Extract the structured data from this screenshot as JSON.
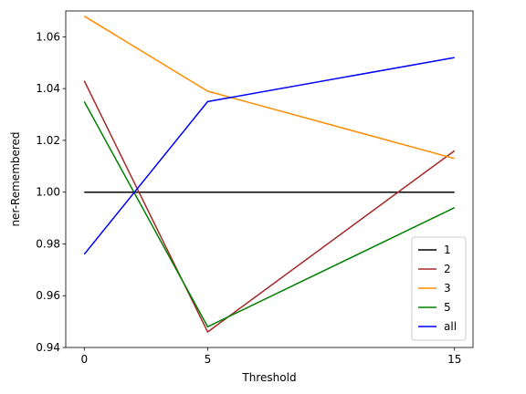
{
  "chart_data": {
    "type": "line",
    "title": "",
    "xlabel": "Threshold",
    "ylabel": "ner-Remembered",
    "x": [
      0,
      5,
      15
    ],
    "x_ticks": [
      0,
      5,
      15
    ],
    "x_tick_labels": [
      "0",
      "5",
      "15"
    ],
    "ylim": [
      0.94,
      1.07
    ],
    "y_ticks": [
      0.94,
      0.96,
      0.98,
      1.0,
      1.02,
      1.04,
      1.06
    ],
    "y_tick_labels": [
      "0.94",
      "0.96",
      "0.98",
      "1.00",
      "1.02",
      "1.04",
      "1.06"
    ],
    "grid": false,
    "legend_position": "lower right",
    "series": [
      {
        "name": "1",
        "color": "#000000",
        "values": [
          1.0,
          1.0,
          1.0
        ]
      },
      {
        "name": "2",
        "color": "#a52a2a",
        "values": [
          1.043,
          0.946,
          1.016
        ]
      },
      {
        "name": "3",
        "color": "#ff8c00",
        "values": [
          1.068,
          1.039,
          1.013
        ]
      },
      {
        "name": "5",
        "color": "#008000",
        "values": [
          1.035,
          0.948,
          0.994
        ]
      },
      {
        "name": "all",
        "color": "#0000ff",
        "values": [
          0.976,
          1.035,
          1.052
        ]
      }
    ]
  }
}
